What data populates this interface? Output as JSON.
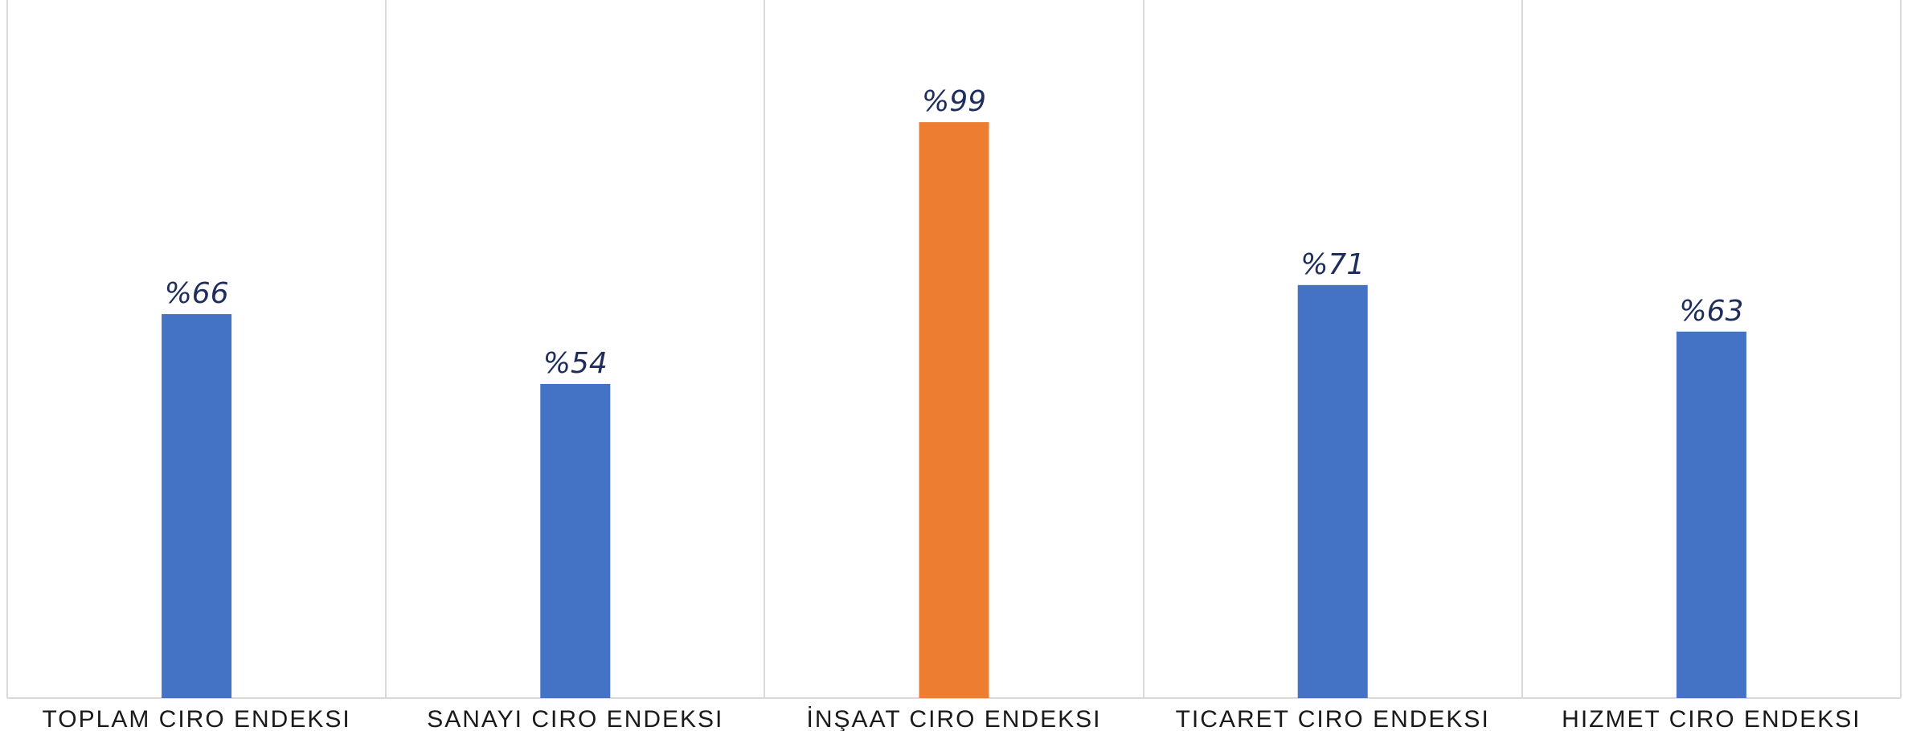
{
  "chart_data": {
    "type": "bar",
    "categories": [
      "TOPLAM CIRO ENDEKSI",
      "SANAYI CIRO ENDEKSI",
      "İNŞAAT CIRO ENDEKSI",
      "TICARET CIRO ENDEKSI",
      "HIZMET CIRO ENDEKSI"
    ],
    "values": [
      66,
      54,
      99,
      71,
      63
    ],
    "data_labels": [
      "%66",
      "%54",
      "%99",
      "%71",
      "%63"
    ],
    "bar_colors": [
      "#4472C4",
      "#4472C4",
      "#ED7D31",
      "#4472C4",
      "#4472C4"
    ],
    "label_color": "#1F2D5C",
    "title": "",
    "xlabel": "",
    "ylabel": "",
    "ylim": [
      0,
      120
    ],
    "grid": "vertical category separators",
    "legend": "none"
  }
}
